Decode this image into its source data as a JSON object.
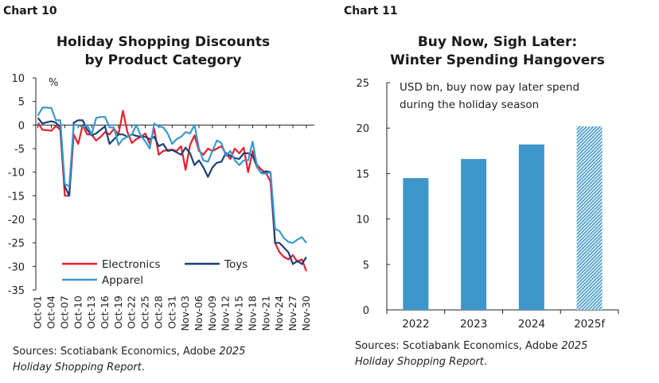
{
  "chart_data": [
    {
      "label": "Chart 10",
      "type": "line",
      "title": "Holiday Shopping Discounts by Product Category",
      "title_lines": [
        "Holiday Shopping Discounts",
        "by Product Category"
      ],
      "unit": "%",
      "ylim": [
        -35,
        10
      ],
      "yticks": [
        10,
        5,
        0,
        -5,
        -10,
        -15,
        -20,
        -25,
        -30,
        -35
      ],
      "xtick_labels": [
        "Oct-01",
        "Oct-04",
        "Oct-07",
        "Oct-10",
        "Oct-13",
        "Oct-16",
        "Oct-19",
        "Oct-22",
        "Oct-25",
        "Oct-28",
        "Oct-31",
        "Nov-03",
        "Nov-06",
        "Nov-09",
        "Nov-12",
        "Nov-15",
        "Nov-18",
        "Nov-21",
        "Nov-24",
        "Nov-27",
        "Nov-30"
      ],
      "x_start": "Oct-01",
      "x_end": "Nov-30",
      "grid": false,
      "legend_position": "bottom-left",
      "series": [
        {
          "name": "Electronics",
          "color": "#e5202e",
          "values": [
            0.5,
            -1,
            -1.1,
            -1.2,
            -0.2,
            -1,
            -15,
            -15,
            -2,
            -4,
            0,
            -2,
            -2,
            -3.3,
            -2.5,
            -1.5,
            -2,
            -0.8,
            -2,
            3,
            -1.5,
            -3.8,
            -3,
            -2.5,
            -1.8,
            -4,
            -0.8,
            -6.3,
            -5.5,
            -5.3,
            -5.2,
            -5.5,
            -4.5,
            -9.5,
            -4.2,
            -2.2,
            -5.5,
            -6.3,
            -5,
            -5.5,
            -5,
            -4.5,
            -6,
            -7.2,
            -5,
            -6,
            -4.8,
            -10,
            -5.5,
            -8.5,
            -9.5,
            -10.2,
            -12,
            -25,
            -27,
            -28,
            -28.5,
            -27.6,
            -29,
            -28.5,
            -31
          ]
        },
        {
          "name": "Toys",
          "color": "#1d3f78",
          "values": [
            1.5,
            0.3,
            0.6,
            0.8,
            0.5,
            -0.5,
            -13,
            -15,
            0.5,
            1,
            1,
            -1,
            -2.2,
            -1.8,
            -1,
            -0.3,
            -4,
            -3,
            -2,
            -2,
            -2.5,
            -2,
            -2.3,
            -2.5,
            -2.5,
            -3,
            -2.5,
            -4.5,
            -4,
            -5.5,
            -5.3,
            -5.8,
            -6.3,
            -4.8,
            -6,
            -8.5,
            -7.5,
            -9,
            -11,
            -9,
            -8,
            -7.8,
            -6,
            -6.5,
            -7,
            -7.2,
            -6,
            -6,
            -6.5,
            -9,
            -10.2,
            -9.8,
            -10,
            -25,
            -25,
            -26,
            -27,
            -29.5,
            -28.8,
            -29.5,
            -28
          ]
        },
        {
          "name": "Apparel",
          "color": "#3a98cc",
          "values": [
            2,
            3.7,
            3.7,
            3.6,
            1,
            1,
            -12.5,
            -13,
            0,
            0,
            -0.5,
            0,
            -2,
            1.5,
            1.7,
            1.7,
            -0.5,
            -0.5,
            -4.2,
            -3,
            -2.5,
            -2,
            0,
            -2.3,
            -3.5,
            -5,
            0.3,
            -0.3,
            -0.5,
            -1.8,
            -4,
            -3,
            -2.5,
            -1.5,
            -1.8,
            0,
            -5,
            -7.5,
            -7.8,
            -5.5,
            -3.3,
            -3.8,
            -6.5,
            -5.5,
            -7.5,
            -8.5,
            -7.5,
            -7.5,
            -3.5,
            -9,
            -10.3,
            -10.3,
            -10,
            -22,
            -22.5,
            -24,
            -24.8,
            -25,
            -24.3,
            -23.8,
            -25
          ]
        }
      ],
      "source": {
        "text": "Sources: Scotiabank Economics, Adobe ",
        "italic": "2025 Holiday Shopping Report",
        "end": "."
      }
    },
    {
      "label": "Chart 11",
      "type": "bar",
      "title": "Buy Now, Sigh Later: Winter Spending Hangovers",
      "title_lines": [
        "Buy Now, Sigh Later:",
        "Winter Spending Hangovers"
      ],
      "annotation_lines": [
        "USD bn, buy now pay later spend",
        "during the holiday season"
      ],
      "categories": [
        "2022",
        "2023",
        "2024",
        "2025f"
      ],
      "values": [
        14.5,
        16.6,
        18.2,
        20.2
      ],
      "forecast": [
        false,
        false,
        false,
        true
      ],
      "color": "#3d96c9",
      "ylim": [
        0,
        25
      ],
      "yticks": [
        0,
        5,
        10,
        15,
        20,
        25
      ],
      "grid": false,
      "source": {
        "text": "Sources: Scotiabank Economics, Adobe ",
        "italic": "2025 Holiday Shopping Report",
        "end": "."
      }
    }
  ]
}
